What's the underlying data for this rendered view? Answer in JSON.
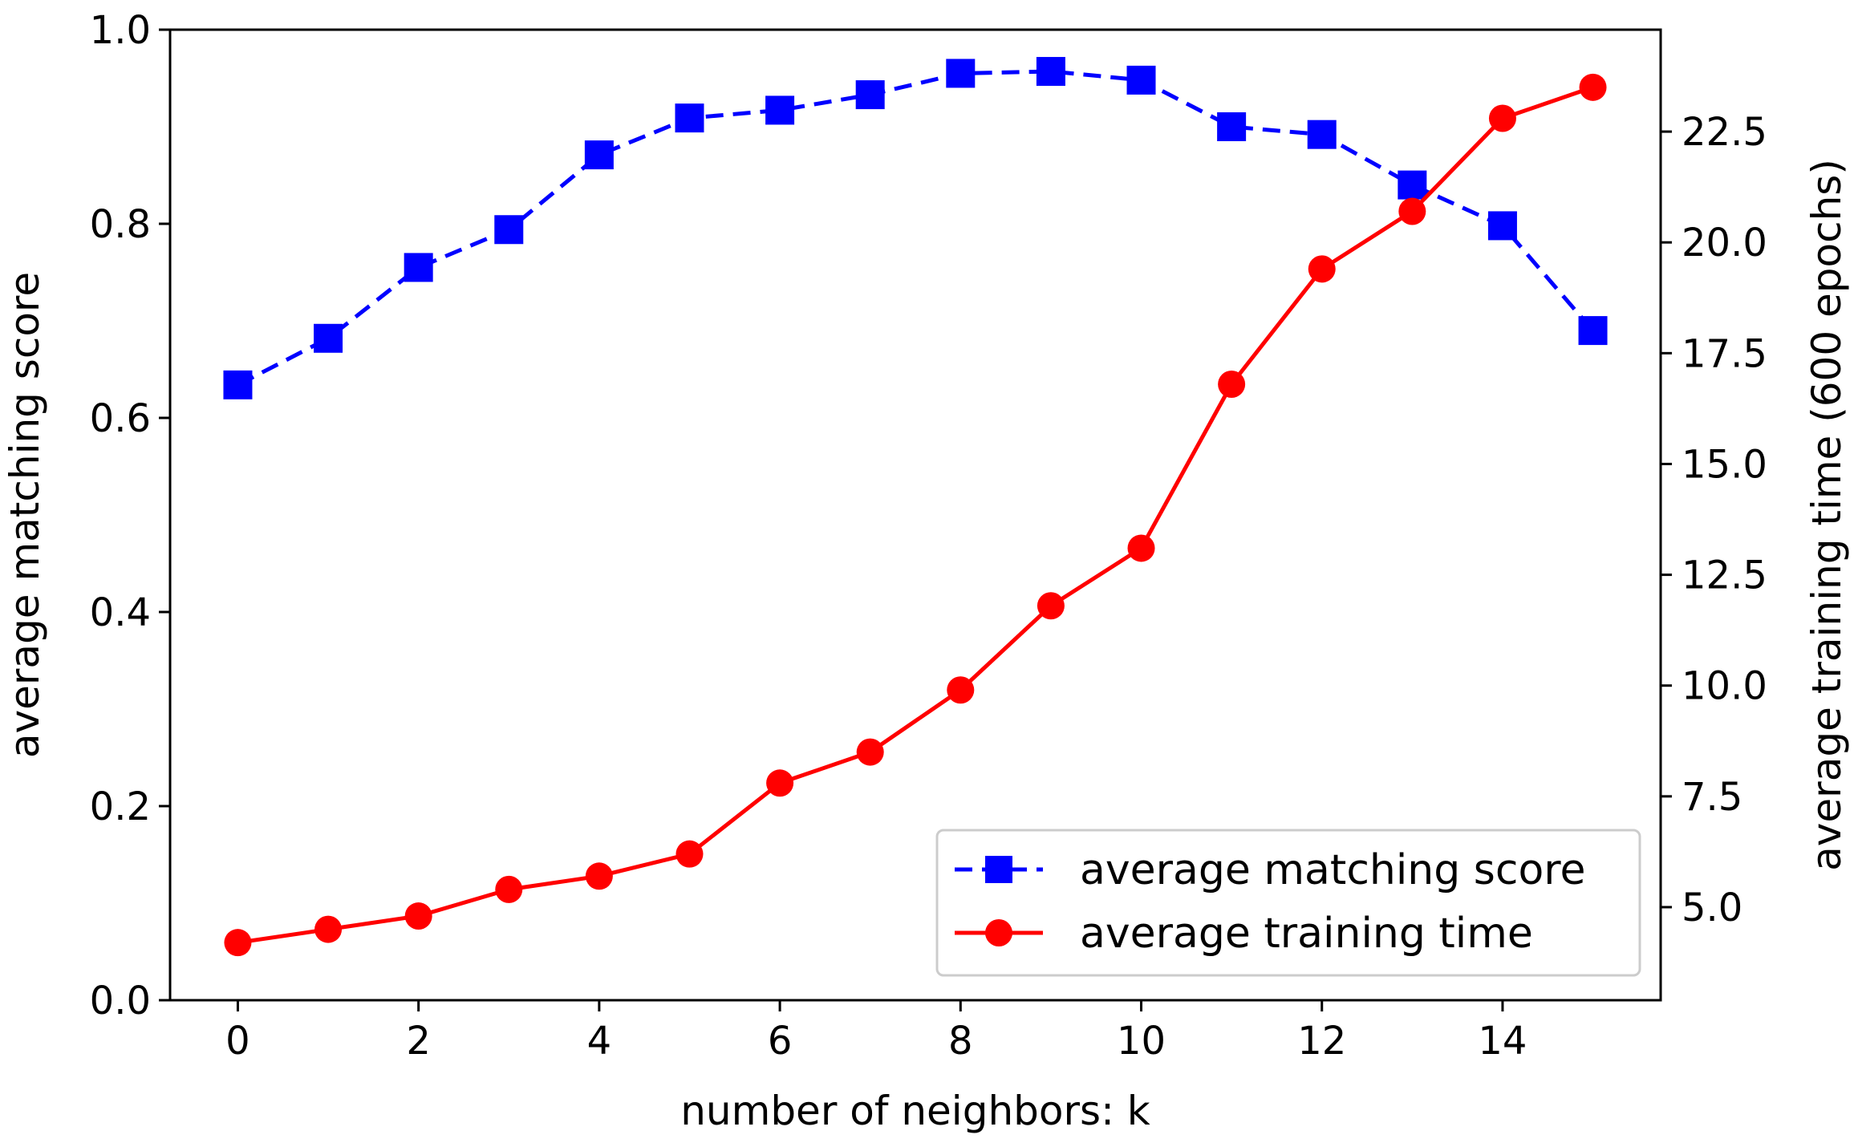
{
  "chart_data": {
    "type": "line",
    "title": "",
    "xlabel": "number of neighbors: k",
    "ylabel": "average matching score",
    "y2label": "average training time (600 epochs)",
    "xlim": [
      -0.75,
      15.75
    ],
    "ylim": [
      0.0,
      1.0
    ],
    "y2lim": [
      2.9,
      24.8
    ],
    "xticks": [
      0,
      2,
      4,
      6,
      8,
      10,
      12,
      14
    ],
    "xtick_labels": [
      "0",
      "2",
      "4",
      "6",
      "8",
      "10",
      "12",
      "14"
    ],
    "yticks": [
      0.0,
      0.2,
      0.4,
      0.6,
      0.8,
      1.0
    ],
    "ytick_labels": [
      "0.0",
      "0.2",
      "0.4",
      "0.6",
      "0.8",
      "1.0"
    ],
    "y2ticks": [
      5.0,
      7.5,
      10.0,
      12.5,
      15.0,
      17.5,
      20.0,
      22.5
    ],
    "y2tick_labels": [
      "5.0",
      "7.5",
      "10.0",
      "12.5",
      "15.0",
      "17.5",
      "20.0",
      "22.5"
    ],
    "x": [
      0,
      1,
      2,
      3,
      4,
      5,
      6,
      7,
      8,
      9,
      10,
      11,
      12,
      13,
      14,
      15
    ],
    "series": [
      {
        "name": "average matching score",
        "axis": "left",
        "color": "#0000ff",
        "line_style": "dashed",
        "marker": "square",
        "values": [
          0.634,
          0.682,
          0.755,
          0.794,
          0.871,
          0.909,
          0.917,
          0.933,
          0.955,
          0.957,
          0.948,
          0.9,
          0.892,
          0.84,
          0.798,
          0.69
        ]
      },
      {
        "name": "average training time",
        "axis": "right",
        "color": "#ff0000",
        "line_style": "solid",
        "marker": "circle",
        "values": [
          4.2,
          4.5,
          4.8,
          5.4,
          5.7,
          6.2,
          7.8,
          8.5,
          9.9,
          11.8,
          13.1,
          16.8,
          19.4,
          20.7,
          22.8,
          23.5
        ]
      }
    ],
    "legend_position": "lower-right",
    "grid": false
  }
}
